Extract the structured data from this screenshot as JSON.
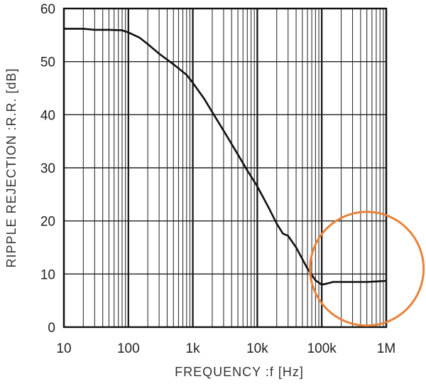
{
  "chart_data": {
    "type": "line",
    "xlabel": "FREQUENCY :f [Hz]",
    "ylabel": "RIPPLE REJECTION :R.R. [dB]",
    "x_scale": "log",
    "xlim": [
      10,
      1000000
    ],
    "ylim": [
      0,
      60
    ],
    "grid": true,
    "x_ticks": [
      {
        "value": 10,
        "label": "10"
      },
      {
        "value": 100,
        "label": "100"
      },
      {
        "value": 1000,
        "label": "1k"
      },
      {
        "value": 10000,
        "label": "10k"
      },
      {
        "value": 100000,
        "label": "100k"
      },
      {
        "value": 1000000,
        "label": "1M"
      }
    ],
    "y_ticks": [
      {
        "value": 0,
        "label": "0"
      },
      {
        "value": 10,
        "label": "10"
      },
      {
        "value": 20,
        "label": "20"
      },
      {
        "value": 30,
        "label": "30"
      },
      {
        "value": 40,
        "label": "40"
      },
      {
        "value": 50,
        "label": "50"
      },
      {
        "value": 60,
        "label": "60"
      }
    ],
    "series": [
      {
        "color": "#111111",
        "points": [
          [
            10,
            56.2
          ],
          [
            20,
            56.2
          ],
          [
            30,
            56.0
          ],
          [
            50,
            56.0
          ],
          [
            80,
            55.9
          ],
          [
            100,
            55.5
          ],
          [
            150,
            54.5
          ],
          [
            200,
            53.3
          ],
          [
            300,
            51.5
          ],
          [
            500,
            49.5
          ],
          [
            800,
            47.5
          ],
          [
            1000,
            46.0
          ],
          [
            1500,
            43.0
          ],
          [
            2000,
            40.5
          ],
          [
            3000,
            37.0
          ],
          [
            5000,
            32.5
          ],
          [
            7000,
            29.5
          ],
          [
            10000,
            26.5
          ],
          [
            15000,
            22.5
          ],
          [
            20000,
            19.5
          ],
          [
            25000,
            17.6
          ],
          [
            30000,
            17.2
          ],
          [
            40000,
            15.0
          ],
          [
            50000,
            12.8
          ],
          [
            60000,
            11.0
          ],
          [
            80000,
            8.8
          ],
          [
            100000,
            8.0
          ],
          [
            120000,
            8.2
          ],
          [
            150000,
            8.5
          ],
          [
            300000,
            8.5
          ],
          [
            500000,
            8.5
          ],
          [
            700000,
            8.6
          ],
          [
            1000000,
            8.7
          ]
        ]
      }
    ],
    "annotation": {
      "type": "circle",
      "color": "#e8823a",
      "center_x": 500000,
      "center_y": 11
    }
  }
}
